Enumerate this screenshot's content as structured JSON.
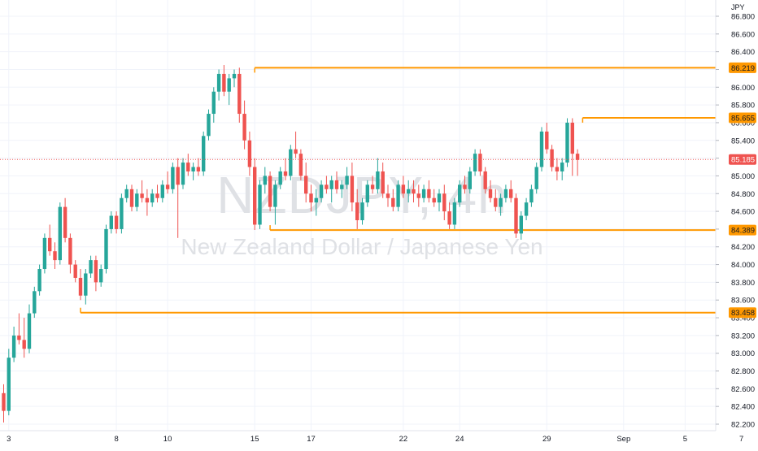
{
  "watermark": {
    "symbol": "NZDJPY, 4h",
    "description": "New Zealand Dollar / Japanese Yen"
  },
  "chart_data": {
    "type": "candlestick",
    "currency": "JPY",
    "ylim": [
      82.15,
      86.95
    ],
    "y_ticks": [
      "82.200",
      "82.400",
      "82.600",
      "82.800",
      "83.000",
      "83.200",
      "83.400",
      "83.600",
      "83.800",
      "84.000",
      "84.200",
      "84.400",
      "84.600",
      "84.800",
      "85.000",
      "85.200",
      "85.400",
      "85.600",
      "85.800",
      "86.000",
      "86.200",
      "86.400",
      "86.600",
      "86.800"
    ],
    "x_ticks": [
      {
        "label": "3",
        "bar": 1
      },
      {
        "label": "8",
        "bar": 22
      },
      {
        "label": "10",
        "bar": 32
      },
      {
        "label": "15",
        "bar": 49
      },
      {
        "label": "17",
        "bar": 60
      },
      {
        "label": "22",
        "bar": 78
      },
      {
        "label": "24",
        "bar": 89
      },
      {
        "label": "29",
        "bar": 106
      },
      {
        "label": "Sep",
        "bar": 121
      },
      {
        "label": "5",
        "bar": 133
      },
      {
        "label": "7",
        "bar": 144
      }
    ],
    "levels": [
      {
        "label": "86.219",
        "value": 86.219,
        "start_bar": 49
      },
      {
        "label": "85.655",
        "value": 85.655,
        "start_bar": 113
      },
      {
        "label": "84.389",
        "value": 84.389,
        "start_bar": 52
      },
      {
        "label": "83.458",
        "value": 83.458,
        "start_bar": 15
      }
    ],
    "last_price": {
      "label": "85.185",
      "value": 85.185
    },
    "candles": [
      [
        82.55,
        82.65,
        82.22,
        82.35
      ],
      [
        82.35,
        83.05,
        82.3,
        82.95
      ],
      [
        82.95,
        83.3,
        82.9,
        83.2
      ],
      [
        83.2,
        83.45,
        83.1,
        83.15
      ],
      [
        83.15,
        83.4,
        82.95,
        83.05
      ],
      [
        83.05,
        83.55,
        83.0,
        83.45
      ],
      [
        83.45,
        83.75,
        83.4,
        83.7
      ],
      [
        83.7,
        84.0,
        83.65,
        83.95
      ],
      [
        83.95,
        84.35,
        83.9,
        84.3
      ],
      [
        84.3,
        84.45,
        84.1,
        84.15
      ],
      [
        84.15,
        84.25,
        83.95,
        84.05
      ],
      [
        84.05,
        84.7,
        84.0,
        84.65
      ],
      [
        84.65,
        84.75,
        84.25,
        84.3
      ],
      [
        84.3,
        84.35,
        83.9,
        84.0
      ],
      [
        84.0,
        84.05,
        83.8,
        83.85
      ],
      [
        83.85,
        83.95,
        83.6,
        83.65
      ],
      [
        83.65,
        83.95,
        83.55,
        83.9
      ],
      [
        83.9,
        84.1,
        83.85,
        84.05
      ],
      [
        84.05,
        84.1,
        83.7,
        83.8
      ],
      [
        83.8,
        84.0,
        83.75,
        83.95
      ],
      [
        83.95,
        84.45,
        83.9,
        84.4
      ],
      [
        84.4,
        84.6,
        84.35,
        84.55
      ],
      [
        84.55,
        84.6,
        84.35,
        84.4
      ],
      [
        84.4,
        84.8,
        84.35,
        84.75
      ],
      [
        84.75,
        84.9,
        84.7,
        84.85
      ],
      [
        84.85,
        84.9,
        84.6,
        84.65
      ],
      [
        84.65,
        84.85,
        84.6,
        84.8
      ],
      [
        84.8,
        84.95,
        84.7,
        84.75
      ],
      [
        84.75,
        84.85,
        84.55,
        84.7
      ],
      [
        84.7,
        84.85,
        84.65,
        84.8
      ],
      [
        84.8,
        84.9,
        84.7,
        84.75
      ],
      [
        84.75,
        84.95,
        84.7,
        84.9
      ],
      [
        84.9,
        85.05,
        84.8,
        84.85
      ],
      [
        84.85,
        85.15,
        84.8,
        85.1
      ],
      [
        85.1,
        85.2,
        84.3,
        84.9
      ],
      [
        84.9,
        85.2,
        84.85,
        85.15
      ],
      [
        85.15,
        85.25,
        85.0,
        85.05
      ],
      [
        85.05,
        85.15,
        84.95,
        85.1
      ],
      [
        85.1,
        85.2,
        85.0,
        85.05
      ],
      [
        85.05,
        85.5,
        85.0,
        85.45
      ],
      [
        85.45,
        85.75,
        85.4,
        85.7
      ],
      [
        85.7,
        86.0,
        85.6,
        85.95
      ],
      [
        85.95,
        86.2,
        85.85,
        86.15
      ],
      [
        86.15,
        86.25,
        85.9,
        85.95
      ],
      [
        85.95,
        86.15,
        85.8,
        86.1
      ],
      [
        86.1,
        86.2,
        86.0,
        86.15
      ],
      [
        86.15,
        86.22,
        85.6,
        85.7
      ],
      [
        85.7,
        85.85,
        85.3,
        85.4
      ],
      [
        85.4,
        85.5,
        85.0,
        85.1
      ],
      [
        85.1,
        85.2,
        84.39,
        84.45
      ],
      [
        84.45,
        84.95,
        84.4,
        84.9
      ],
      [
        84.9,
        85.1,
        84.8,
        85.0
      ],
      [
        85.0,
        85.05,
        84.6,
        84.65
      ],
      [
        84.65,
        84.95,
        84.45,
        84.9
      ],
      [
        84.9,
        85.1,
        84.85,
        85.05
      ],
      [
        85.05,
        85.2,
        84.95,
        85.0
      ],
      [
        85.0,
        85.35,
        84.95,
        85.3
      ],
      [
        85.3,
        85.5,
        85.2,
        85.25
      ],
      [
        85.25,
        85.3,
        84.95,
        85.0
      ],
      [
        85.0,
        85.15,
        84.7,
        84.8
      ],
      [
        84.8,
        84.9,
        84.6,
        84.7
      ],
      [
        84.7,
        84.85,
        84.55,
        84.75
      ],
      [
        84.75,
        84.95,
        84.7,
        84.9
      ],
      [
        84.9,
        85.0,
        84.8,
        84.85
      ],
      [
        84.85,
        85.0,
        84.7,
        84.95
      ],
      [
        84.95,
        85.05,
        84.8,
        84.85
      ],
      [
        84.85,
        84.95,
        84.75,
        84.9
      ],
      [
        84.9,
        85.1,
        84.85,
        85.0
      ],
      [
        85.0,
        85.15,
        84.6,
        84.7
      ],
      [
        84.7,
        84.85,
        84.4,
        84.5
      ],
      [
        84.5,
        84.75,
        84.45,
        84.7
      ],
      [
        84.7,
        84.95,
        84.65,
        84.9
      ],
      [
        84.9,
        85.0,
        84.8,
        84.85
      ],
      [
        84.85,
        85.2,
        84.8,
        85.05
      ],
      [
        85.05,
        85.15,
        84.75,
        84.8
      ],
      [
        84.8,
        84.9,
        84.65,
        84.75
      ],
      [
        84.75,
        84.85,
        84.6,
        84.65
      ],
      [
        84.65,
        84.95,
        84.6,
        84.9
      ],
      [
        84.9,
        85.0,
        84.75,
        84.8
      ],
      [
        84.8,
        84.95,
        84.7,
        84.85
      ],
      [
        84.85,
        84.95,
        84.7,
        84.8
      ],
      [
        84.8,
        84.9,
        84.65,
        84.75
      ],
      [
        84.75,
        84.9,
        84.7,
        84.85
      ],
      [
        84.85,
        84.95,
        84.7,
        84.75
      ],
      [
        84.75,
        84.85,
        84.65,
        84.7
      ],
      [
        84.7,
        84.85,
        84.6,
        84.8
      ],
      [
        84.8,
        84.9,
        84.5,
        84.6
      ],
      [
        84.6,
        84.7,
        84.4,
        84.45
      ],
      [
        84.45,
        84.75,
        84.4,
        84.7
      ],
      [
        84.7,
        84.95,
        84.65,
        84.9
      ],
      [
        84.9,
        85.0,
        84.8,
        84.85
      ],
      [
        84.85,
        85.1,
        84.8,
        85.05
      ],
      [
        85.05,
        85.3,
        85.0,
        85.25
      ],
      [
        85.25,
        85.3,
        85.0,
        85.05
      ],
      [
        85.05,
        85.1,
        84.8,
        84.85
      ],
      [
        84.85,
        84.95,
        84.7,
        84.75
      ],
      [
        84.75,
        84.85,
        84.6,
        84.65
      ],
      [
        84.65,
        84.8,
        84.55,
        84.75
      ],
      [
        84.75,
        84.9,
        84.7,
        84.85
      ],
      [
        84.85,
        84.95,
        84.7,
        84.75
      ],
      [
        84.75,
        84.8,
        84.3,
        84.35
      ],
      [
        84.35,
        84.6,
        84.28,
        84.55
      ],
      [
        84.55,
        84.75,
        84.5,
        84.7
      ],
      [
        84.7,
        84.9,
        84.65,
        84.85
      ],
      [
        84.85,
        85.15,
        84.8,
        85.1
      ],
      [
        85.1,
        85.55,
        85.05,
        85.5
      ],
      [
        85.5,
        85.6,
        85.25,
        85.3
      ],
      [
        85.3,
        85.35,
        85.05,
        85.1
      ],
      [
        85.1,
        85.2,
        84.95,
        85.05
      ],
      [
        85.05,
        85.2,
        84.95,
        85.15
      ],
      [
        85.15,
        85.65,
        85.1,
        85.6
      ],
      [
        85.6,
        85.65,
        85.0,
        85.25
      ],
      [
        85.25,
        85.3,
        85.0,
        85.18
      ]
    ]
  }
}
